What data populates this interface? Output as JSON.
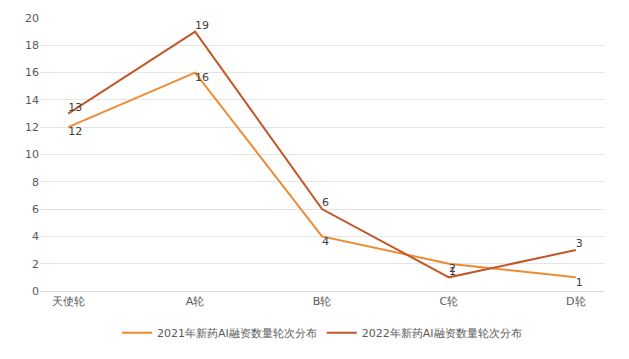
{
  "chart_data": {
    "type": "line",
    "categories": [
      "天使轮",
      "A轮",
      "B轮",
      "C轮",
      "D轮"
    ],
    "series": [
      {
        "name": "2021年新药AI融资数量轮次分布",
        "color": "#ed8b33",
        "values": [
          12,
          16,
          4,
          2,
          1
        ]
      },
      {
        "name": "2022年新药AI融资数量轮次分布",
        "color": "#c0582a",
        "values": [
          13,
          19,
          6,
          1,
          3
        ]
      }
    ],
    "ylim": [
      0,
      20
    ],
    "yticks": [
      0,
      2,
      4,
      6,
      8,
      10,
      12,
      14,
      16,
      18,
      20
    ],
    "grid": true,
    "legend": "bottom",
    "data_labels": true
  }
}
